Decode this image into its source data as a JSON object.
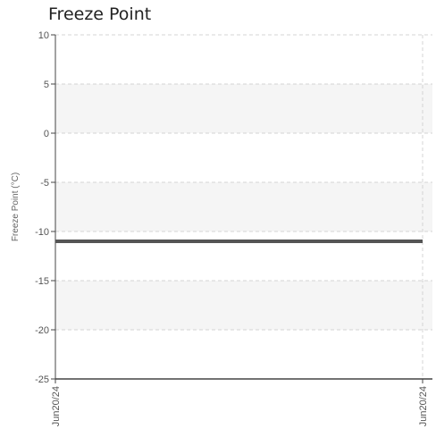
{
  "chart_data": {
    "type": "line",
    "title": "Freeze Point",
    "xlabel": "",
    "ylabel": "Freeze Point (°C)",
    "ylim": [
      -25,
      10
    ],
    "yticks": [
      10,
      5,
      0,
      -5,
      -10,
      -15,
      -20,
      -25
    ],
    "x": [
      "Jun20/24",
      "Jun20/24"
    ],
    "series": [
      {
        "values": [
          -11,
          -11
        ],
        "color": "#555555"
      }
    ],
    "band_fill_color": "#f5f5f5",
    "grid": true,
    "legend": "none"
  }
}
